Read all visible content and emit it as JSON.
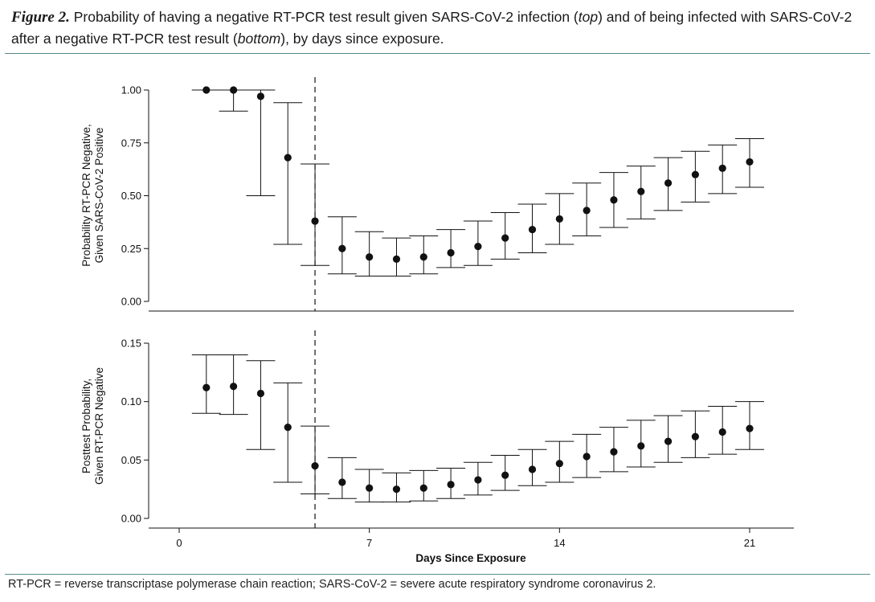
{
  "caption": {
    "figure_label": "Figure 2.",
    "text_1": " Probability of having a negative RT-PCR test result given SARS-CoV-2 infection (",
    "em_1": "top",
    "text_2": ") and of being infected with SARS-CoV-2 after a negative RT-PCR test result (",
    "em_2": "bottom",
    "text_3": "), by days since exposure."
  },
  "footnote": "RT-PCR = reverse transcriptase polymerase chain reaction; SARS-CoV-2 = severe acute respiratory syndrome coronavirus 2.",
  "colors": {
    "rule": "#5b8c8c",
    "ink": "#111111"
  },
  "chart_data": [
    {
      "type": "scatter",
      "panel": "top",
      "ylabel_line1": "Probability RT-PCR Negative,",
      "ylabel_line2": "Given SARS-CoV-2 Positive",
      "xlim": [
        0,
        22
      ],
      "ylim": [
        0,
        1
      ],
      "yticks": [
        "0.00",
        "0.25",
        "0.50",
        "0.75",
        "1.00"
      ],
      "ytick_values": [
        0,
        0.25,
        0.5,
        0.75,
        1.0
      ],
      "vline_x": 5,
      "x": [
        1,
        2,
        3,
        4,
        5,
        6,
        7,
        8,
        9,
        10,
        11,
        12,
        13,
        14,
        15,
        16,
        17,
        18,
        19,
        20,
        21
      ],
      "y": [
        1.0,
        1.0,
        0.97,
        0.68,
        0.38,
        0.25,
        0.21,
        0.2,
        0.21,
        0.23,
        0.26,
        0.3,
        0.34,
        0.39,
        0.43,
        0.48,
        0.52,
        0.56,
        0.6,
        0.63,
        0.66
      ],
      "lower": [
        1.0,
        0.9,
        0.5,
        0.27,
        0.17,
        0.13,
        0.12,
        0.12,
        0.13,
        0.16,
        0.17,
        0.2,
        0.23,
        0.27,
        0.31,
        0.35,
        0.39,
        0.43,
        0.47,
        0.51,
        0.54
      ],
      "upper": [
        1.0,
        1.0,
        1.0,
        0.94,
        0.65,
        0.4,
        0.33,
        0.3,
        0.31,
        0.34,
        0.38,
        0.42,
        0.46,
        0.51,
        0.56,
        0.61,
        0.64,
        0.68,
        0.71,
        0.74,
        0.77
      ]
    },
    {
      "type": "scatter",
      "panel": "bottom",
      "ylabel_line1": "Posttest Probability,",
      "ylabel_line2": "Given RT-PCR Negative",
      "xlabel": "Days Since Exposure",
      "xlim": [
        0,
        22
      ],
      "xticks": [
        "0",
        "7",
        "14",
        "21"
      ],
      "xtick_values": [
        0,
        7,
        14,
        21
      ],
      "ylim": [
        0,
        0.15
      ],
      "yticks": [
        "0.00",
        "0.05",
        "0.10",
        "0.15"
      ],
      "ytick_values": [
        0,
        0.05,
        0.1,
        0.15
      ],
      "vline_x": 5,
      "x": [
        1,
        2,
        3,
        4,
        5,
        6,
        7,
        8,
        9,
        10,
        11,
        12,
        13,
        14,
        15,
        16,
        17,
        18,
        19,
        20,
        21
      ],
      "y": [
        0.112,
        0.113,
        0.107,
        0.078,
        0.045,
        0.031,
        0.026,
        0.025,
        0.026,
        0.029,
        0.033,
        0.037,
        0.042,
        0.047,
        0.053,
        0.057,
        0.062,
        0.066,
        0.07,
        0.074,
        0.077
      ],
      "lower": [
        0.09,
        0.089,
        0.059,
        0.031,
        0.021,
        0.017,
        0.014,
        0.014,
        0.015,
        0.017,
        0.02,
        0.024,
        0.028,
        0.031,
        0.035,
        0.04,
        0.044,
        0.048,
        0.052,
        0.055,
        0.059
      ],
      "upper": [
        0.14,
        0.14,
        0.135,
        0.116,
        0.079,
        0.052,
        0.042,
        0.039,
        0.041,
        0.043,
        0.048,
        0.054,
        0.059,
        0.066,
        0.072,
        0.078,
        0.084,
        0.088,
        0.092,
        0.096,
        0.1
      ]
    }
  ]
}
